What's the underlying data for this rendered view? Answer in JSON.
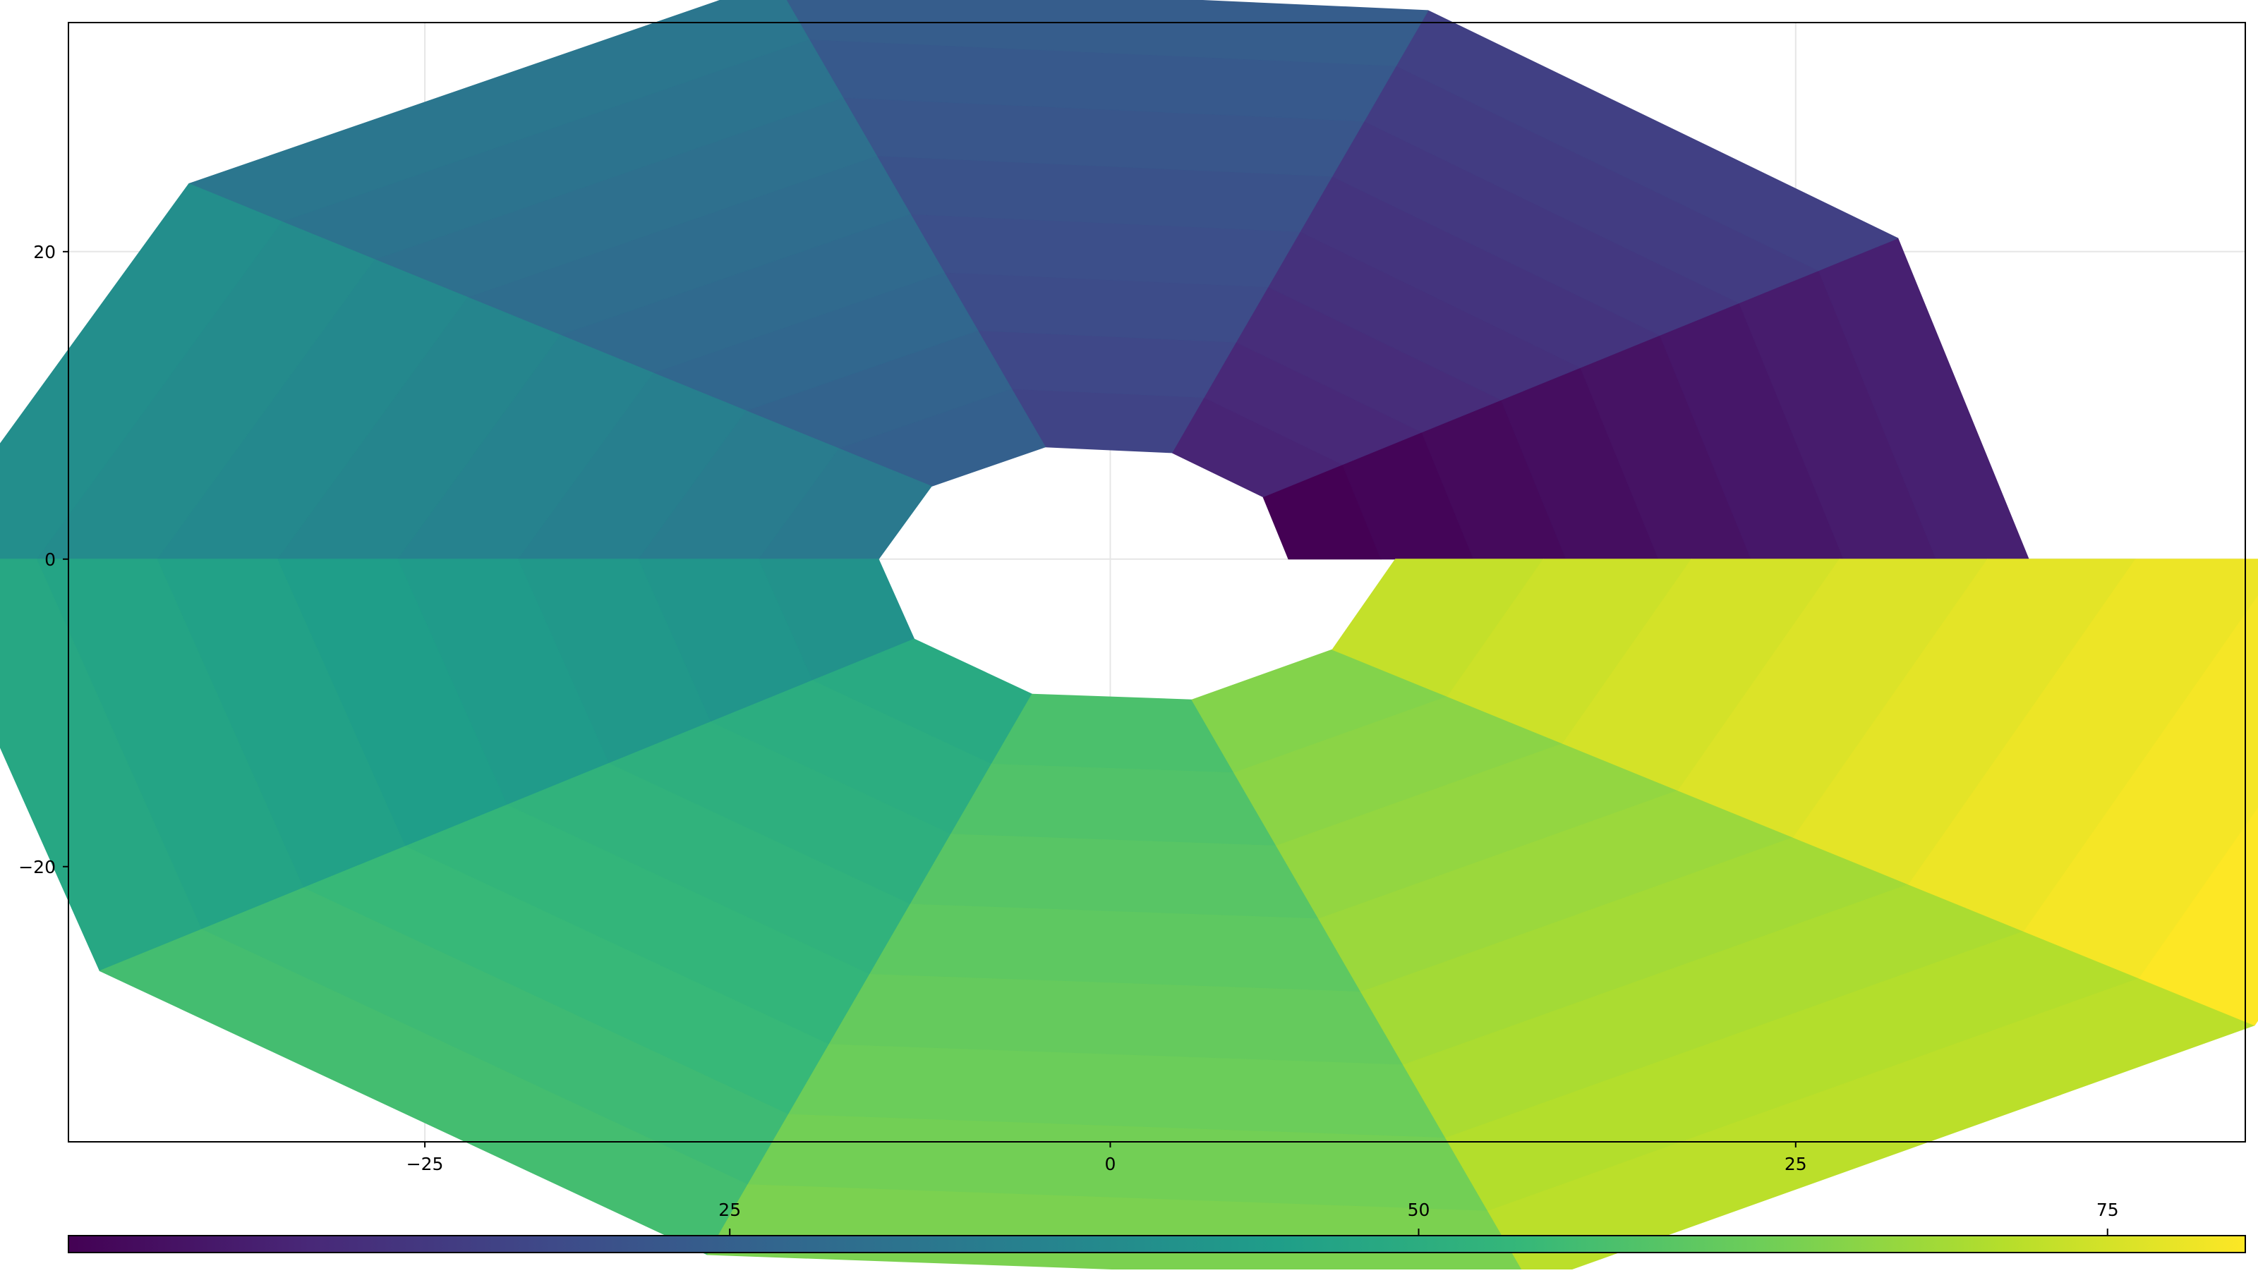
{
  "chart_data": {
    "type": "heatmap",
    "subtype": "polar-surface",
    "title": "",
    "xlabel": "",
    "ylabel": "",
    "xlim": [
      -38,
      41.4
    ],
    "ylim": [
      -37.9,
      34.9
    ],
    "x_ticks": [
      -25,
      0,
      25
    ],
    "x_tick_labels": [
      "−25",
      "0",
      "25"
    ],
    "y_ticks": [
      -20,
      0,
      20
    ],
    "y_tick_labels": [
      "−20",
      "0",
      "20"
    ],
    "grid": true,
    "colormap": "viridis",
    "colormap_stops": [
      "#440154",
      "#482878",
      "#3e4a89",
      "#31688e",
      "#26828e",
      "#1f9e89",
      "#35b779",
      "#6ece58",
      "#b5de2b",
      "#fde725"
    ],
    "colorbar": {
      "position": "bottom",
      "range": [
        1,
        80
      ],
      "ticks": [
        25,
        50,
        75
      ],
      "tick_labels": [
        "25",
        "50",
        "75"
      ]
    },
    "theta_segments": 10,
    "radial_rings": 8,
    "inner_radius_base": 6.5,
    "outer_radius_base": 33.5,
    "radius_growth_per_segment": 0.6,
    "value_range": [
      1,
      80
    ],
    "value_rule": "value = 1 + 79 * (theta_index * rings + ring_index) / (segments * rings - 1)"
  }
}
